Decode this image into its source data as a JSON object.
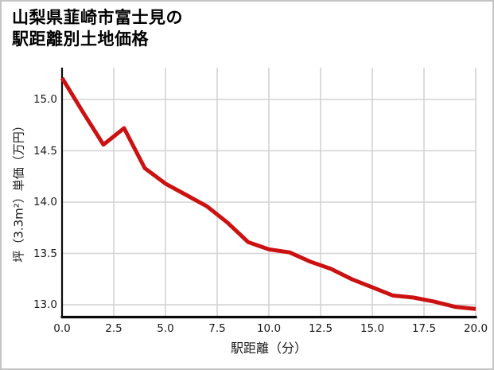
{
  "title": {
    "line1": "山梨県韮崎市富士見の",
    "line2": "駅距離別土地価格"
  },
  "chart_data": {
    "type": "line",
    "title": "山梨県韮崎市富士見の駅距離別土地価格",
    "xlabel": "駅距離（分）",
    "ylabel": "坪（3.3m²）単価（万円）",
    "x": [
      0,
      1,
      2,
      3,
      4,
      5,
      6,
      7,
      8,
      9,
      10,
      11,
      12,
      13,
      14,
      15,
      16,
      17,
      18,
      19,
      20
    ],
    "y": [
      15.21,
      14.88,
      14.56,
      14.72,
      14.33,
      14.18,
      14.07,
      13.96,
      13.8,
      13.61,
      13.54,
      13.51,
      13.42,
      13.35,
      13.25,
      13.17,
      13.09,
      13.07,
      13.03,
      12.98,
      12.96
    ],
    "xlim": [
      0,
      20
    ],
    "ylim": [
      12.88,
      15.31
    ],
    "xticks": [
      0,
      2.5,
      5,
      7.5,
      10,
      12.5,
      15,
      17.5,
      20
    ],
    "xtick_labels": [
      "0.0",
      "2.5",
      "5.0",
      "7.5",
      "10.0",
      "12.5",
      "15.0",
      "17.5",
      "20.0"
    ],
    "yticks": [
      13.0,
      13.5,
      14.0,
      14.5,
      15.0
    ],
    "ytick_labels": [
      "13.0",
      "13.5",
      "14.0",
      "14.5",
      "15.0"
    ],
    "grid": true,
    "legend": false,
    "line_color": "#cc1111",
    "line_width": 5
  },
  "colors": {
    "background": "#ffffff",
    "border": "#c4c4c4",
    "grid": "#d3d3d3",
    "spine": "#0a0a0a",
    "text": "#1a1a1a"
  }
}
